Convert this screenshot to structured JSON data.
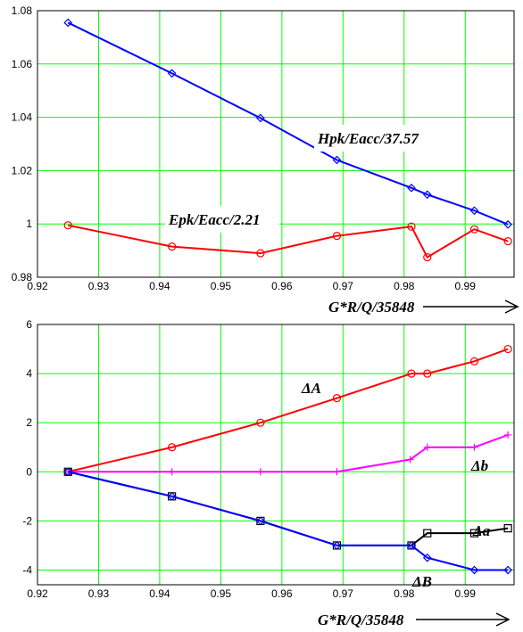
{
  "chart_data": [
    {
      "type": "line",
      "xlabel": "G*R/Q/35848",
      "ylabel": "",
      "xlim": [
        0.92,
        0.998
      ],
      "ylim": [
        0.98,
        1.08
      ],
      "xticks": [
        "0.92",
        "0.93",
        "0.94",
        "0.95",
        "0.96",
        "0.97",
        "0.98",
        "0.99"
      ],
      "yticks": [
        "0.98",
        "1",
        "1.02",
        "1.04",
        "1.06",
        "1.08"
      ],
      "grid": true,
      "series": [
        {
          "name": "Hpk/Eacc/37.57",
          "color": "#0000ff",
          "marker": "diamond",
          "x": [
            0.925,
            0.942,
            0.9565,
            0.969,
            0.9812,
            0.9838,
            0.9915,
            0.997
          ],
          "y": [
            1.0755,
            1.0565,
            1.0397,
            1.024,
            1.0135,
            1.011,
            1.005,
            0.9998
          ]
        },
        {
          "name": "Epk/Eacc/2.21",
          "color": "#ff0000",
          "marker": "circle",
          "x": [
            0.925,
            0.942,
            0.9565,
            0.969,
            0.9812,
            0.9838,
            0.9915,
            0.997
          ],
          "y": [
            0.9995,
            0.9915,
            0.989,
            0.9955,
            0.999,
            0.9875,
            0.998,
            0.9935
          ]
        }
      ]
    },
    {
      "type": "line",
      "xlabel": "G*R/Q/35848",
      "ylabel": "",
      "xlim": [
        0.92,
        0.998
      ],
      "ylim": [
        -4.6,
        6
      ],
      "xticks": [
        "0.92",
        "0.93",
        "0.94",
        "0.95",
        "0.96",
        "0.97",
        "0.98",
        "0.99"
      ],
      "yticks": [
        "-4",
        "-2",
        "0",
        "2",
        "4",
        "6"
      ],
      "grid": true,
      "series": [
        {
          "name": "ΔA",
          "color": "#ff0000",
          "marker": "circle",
          "x": [
            0.925,
            0.942,
            0.9565,
            0.969,
            0.9812,
            0.9838,
            0.9915,
            0.997
          ],
          "y": [
            0,
            1,
            2,
            3,
            4,
            4,
            4.5,
            5
          ]
        },
        {
          "name": "Δb",
          "color": "#ff00ff",
          "marker": "plus",
          "x": [
            0.925,
            0.942,
            0.9565,
            0.969,
            0.981,
            0.9838,
            0.9915,
            0.997
          ],
          "y": [
            0,
            0,
            0,
            0,
            0.5,
            1,
            1,
            1.5
          ]
        },
        {
          "name": "Δa",
          "color": "#000000",
          "marker": "square",
          "x": [
            0.925,
            0.942,
            0.9565,
            0.969,
            0.9812,
            0.9838,
            0.9915,
            0.997
          ],
          "y": [
            0,
            -1,
            -2,
            -3,
            -3,
            -2.5,
            -2.5,
            -2.3
          ]
        },
        {
          "name": "ΔB",
          "color": "#0000ff",
          "marker": "diamond",
          "x": [
            0.925,
            0.942,
            0.9565,
            0.969,
            0.9812,
            0.9838,
            0.9915,
            0.997
          ],
          "y": [
            0,
            -1,
            -2,
            -3,
            -3,
            -3.5,
            -4,
            -4
          ]
        }
      ]
    }
  ],
  "annotations": {
    "top": {
      "hpk": "Hpk/Eacc/37.57",
      "epk": "Epk/Eacc/2.21",
      "xaxis": "G*R/Q/35848"
    },
    "bottom": {
      "dA": "ΔA",
      "db": "Δb",
      "da": "Δa",
      "dB": "ΔB",
      "xaxis": "G*R/Q/35848"
    }
  }
}
